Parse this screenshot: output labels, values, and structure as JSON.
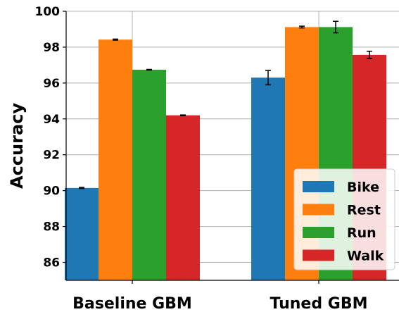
{
  "chart_data": {
    "type": "bar",
    "title": "",
    "xlabel": "",
    "ylabel": "Accuracy",
    "ylim": [
      85,
      100
    ],
    "yticks": [
      86,
      88,
      90,
      92,
      94,
      96,
      98,
      100
    ],
    "categories": [
      "Baseline GBM",
      "Tuned GBM"
    ],
    "series": [
      {
        "name": "Bike",
        "color": "#1f77b4",
        "values": [
          90.15,
          96.3
        ],
        "errors": [
          0.03,
          0.4
        ]
      },
      {
        "name": "Rest",
        "color": "#ff7f0e",
        "values": [
          98.42,
          99.12
        ],
        "errors": [
          0.03,
          0.05
        ]
      },
      {
        "name": "Run",
        "color": "#2ca02c",
        "values": [
          96.74,
          99.12
        ],
        "errors": [
          0.02,
          0.32
        ]
      },
      {
        "name": "Walk",
        "color": "#d62728",
        "values": [
          94.2,
          97.57
        ],
        "errors": [
          0.02,
          0.2
        ]
      }
    ],
    "grid": true,
    "legend_position": "lower-right"
  }
}
